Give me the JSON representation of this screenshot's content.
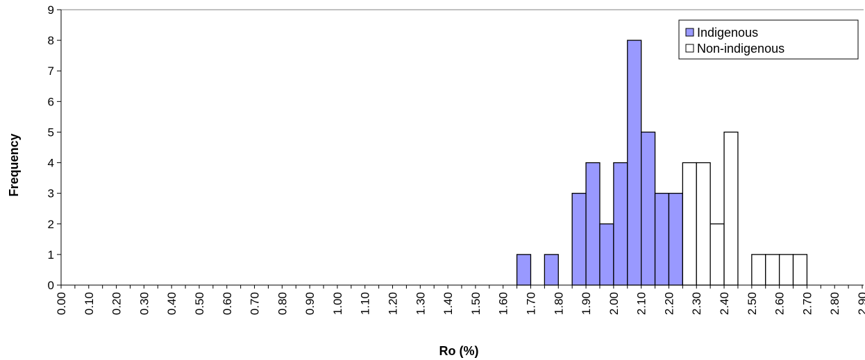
{
  "chart_data": {
    "type": "bar",
    "xlabel": "Ro (%)",
    "ylabel": "Frequency",
    "ylim": [
      0,
      9
    ],
    "yticks": [
      0,
      1,
      2,
      3,
      4,
      5,
      6,
      7,
      8,
      9
    ],
    "categories": [
      "0.00",
      "0.05",
      "0.10",
      "0.15",
      "0.20",
      "0.25",
      "0.30",
      "0.35",
      "0.40",
      "0.45",
      "0.50",
      "0.55",
      "0.60",
      "0.65",
      "0.70",
      "0.75",
      "0.80",
      "0.85",
      "0.90",
      "0.95",
      "1.00",
      "1.05",
      "1.10",
      "1.15",
      "1.20",
      "1.25",
      "1.30",
      "1.35",
      "1.40",
      "1.45",
      "1.50",
      "1.55",
      "1.60",
      "1.65",
      "1.70",
      "1.75",
      "1.80",
      "1.85",
      "1.90",
      "1.95",
      "2.00",
      "2.05",
      "2.10",
      "2.15",
      "2.20",
      "2.25",
      "2.30",
      "2.35",
      "2.40",
      "2.45",
      "2.50",
      "2.55",
      "2.60",
      "2.65",
      "2.70",
      "2.75",
      "2.80",
      "2.85",
      "2.90"
    ],
    "xtick_labels": [
      "0.00",
      "0.10",
      "0.20",
      "0.30",
      "0.40",
      "0.50",
      "0.60",
      "0.70",
      "0.80",
      "0.90",
      "1.00",
      "1.10",
      "1.20",
      "1.30",
      "1.40",
      "1.50",
      "1.60",
      "1.70",
      "1.80",
      "1.90",
      "2.00",
      "2.10",
      "2.20",
      "2.30",
      "2.40",
      "2.50",
      "2.60",
      "2.70",
      "2.80",
      "2.90"
    ],
    "series": [
      {
        "name": "Indigenous",
        "color": "#9999ff",
        "values": [
          0,
          0,
          0,
          0,
          0,
          0,
          0,
          0,
          0,
          0,
          0,
          0,
          0,
          0,
          0,
          0,
          0,
          0,
          0,
          0,
          0,
          0,
          0,
          0,
          0,
          0,
          0,
          0,
          0,
          0,
          0,
          0,
          0,
          1,
          0,
          1,
          0,
          3,
          4,
          2,
          4,
          8,
          5,
          3,
          3,
          0,
          0,
          0,
          0,
          0,
          0,
          0,
          0,
          0,
          0,
          0,
          0,
          0,
          0
        ]
      },
      {
        "name": "Non-indigenous",
        "color": "#ffffff",
        "values": [
          0,
          0,
          0,
          0,
          0,
          0,
          0,
          0,
          0,
          0,
          0,
          0,
          0,
          0,
          0,
          0,
          0,
          0,
          0,
          0,
          0,
          0,
          0,
          0,
          0,
          0,
          0,
          0,
          0,
          0,
          0,
          0,
          0,
          0,
          0,
          0,
          0,
          0,
          0,
          0,
          0,
          0,
          0,
          0,
          0,
          4,
          4,
          2,
          5,
          0,
          1,
          1,
          1,
          1,
          0,
          0,
          0,
          0,
          0
        ]
      }
    ],
    "legend": {
      "position": "top-right"
    },
    "grid": false
  }
}
